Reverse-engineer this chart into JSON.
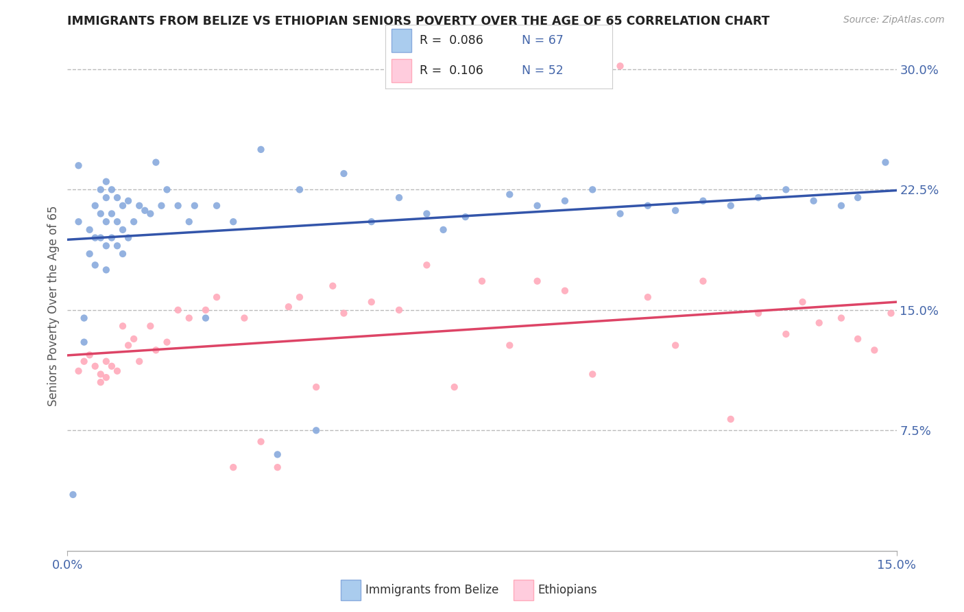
{
  "title": "IMMIGRANTS FROM BELIZE VS ETHIOPIAN SENIORS POVERTY OVER THE AGE OF 65 CORRELATION CHART",
  "source": "Source: ZipAtlas.com",
  "ylabel": "Seniors Poverty Over the Age of 65",
  "xlim": [
    0.0,
    0.15
  ],
  "ylim": [
    0.0,
    0.305
  ],
  "blue_color": "#88AADD",
  "pink_color": "#FFAABB",
  "blue_fill": "#AACCEE",
  "pink_fill": "#FFCCDD",
  "trend_blue": "#3355AA",
  "trend_pink": "#DD4466",
  "dashed_color": "#BBBBBB",
  "grid_color": "#DDDDDD",
  "r1": "0.086",
  "n1": "67",
  "r2": "0.106",
  "n2": "52",
  "blue_x": [
    0.001,
    0.002,
    0.002,
    0.003,
    0.003,
    0.004,
    0.004,
    0.005,
    0.005,
    0.005,
    0.006,
    0.006,
    0.006,
    0.007,
    0.007,
    0.007,
    0.007,
    0.007,
    0.008,
    0.008,
    0.008,
    0.009,
    0.009,
    0.009,
    0.01,
    0.01,
    0.01,
    0.011,
    0.011,
    0.012,
    0.013,
    0.014,
    0.015,
    0.016,
    0.017,
    0.018,
    0.02,
    0.022,
    0.023,
    0.025,
    0.027,
    0.03,
    0.035,
    0.038,
    0.042,
    0.045,
    0.05,
    0.055,
    0.06,
    0.065,
    0.068,
    0.072,
    0.08,
    0.085,
    0.09,
    0.095,
    0.1,
    0.105,
    0.11,
    0.115,
    0.12,
    0.125,
    0.13,
    0.135,
    0.14,
    0.143,
    0.148
  ],
  "blue_y": [
    0.035,
    0.24,
    0.205,
    0.145,
    0.13,
    0.2,
    0.185,
    0.215,
    0.195,
    0.178,
    0.225,
    0.21,
    0.195,
    0.23,
    0.22,
    0.205,
    0.19,
    0.175,
    0.225,
    0.21,
    0.195,
    0.22,
    0.205,
    0.19,
    0.215,
    0.2,
    0.185,
    0.218,
    0.195,
    0.205,
    0.215,
    0.212,
    0.21,
    0.242,
    0.215,
    0.225,
    0.215,
    0.205,
    0.215,
    0.145,
    0.215,
    0.205,
    0.25,
    0.06,
    0.225,
    0.075,
    0.235,
    0.205,
    0.22,
    0.21,
    0.2,
    0.208,
    0.222,
    0.215,
    0.218,
    0.225,
    0.21,
    0.215,
    0.212,
    0.218,
    0.215,
    0.22,
    0.225,
    0.218,
    0.215,
    0.22,
    0.242
  ],
  "pink_x": [
    0.002,
    0.003,
    0.004,
    0.005,
    0.006,
    0.006,
    0.007,
    0.007,
    0.008,
    0.009,
    0.01,
    0.011,
    0.012,
    0.013,
    0.015,
    0.016,
    0.018,
    0.02,
    0.022,
    0.025,
    0.027,
    0.03,
    0.032,
    0.035,
    0.038,
    0.04,
    0.042,
    0.045,
    0.048,
    0.05,
    0.055,
    0.06,
    0.065,
    0.07,
    0.075,
    0.08,
    0.085,
    0.09,
    0.095,
    0.1,
    0.105,
    0.11,
    0.115,
    0.12,
    0.125,
    0.13,
    0.133,
    0.136,
    0.14,
    0.143,
    0.146,
    0.149
  ],
  "pink_y": [
    0.112,
    0.118,
    0.122,
    0.115,
    0.11,
    0.105,
    0.118,
    0.108,
    0.115,
    0.112,
    0.14,
    0.128,
    0.132,
    0.118,
    0.14,
    0.125,
    0.13,
    0.15,
    0.145,
    0.15,
    0.158,
    0.052,
    0.145,
    0.068,
    0.052,
    0.152,
    0.158,
    0.102,
    0.165,
    0.148,
    0.155,
    0.15,
    0.178,
    0.102,
    0.168,
    0.128,
    0.168,
    0.162,
    0.11,
    0.302,
    0.158,
    0.128,
    0.168,
    0.082,
    0.148,
    0.135,
    0.155,
    0.142,
    0.145,
    0.132,
    0.125,
    0.148
  ]
}
